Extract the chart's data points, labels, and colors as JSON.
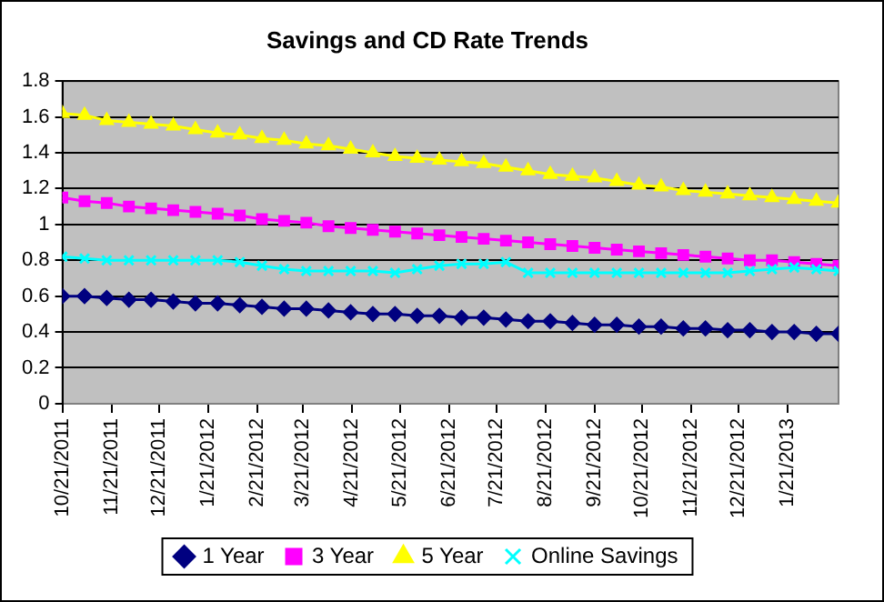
{
  "chart_data": {
    "type": "line",
    "title": "Savings and CD Rate Trends",
    "x": [
      "2011-10-21",
      "2011-11-04",
      "2011-11-18",
      "2011-12-02",
      "2011-12-16",
      "2011-12-30",
      "2012-01-13",
      "2012-01-27",
      "2012-02-10",
      "2012-02-24",
      "2012-03-09",
      "2012-03-23",
      "2012-04-06",
      "2012-04-20",
      "2012-05-04",
      "2012-05-18",
      "2012-06-01",
      "2012-06-15",
      "2012-06-29",
      "2012-07-13",
      "2012-07-27",
      "2012-08-10",
      "2012-08-24",
      "2012-09-07",
      "2012-09-21",
      "2012-10-05",
      "2012-10-19",
      "2012-11-02",
      "2012-11-16",
      "2012-11-30",
      "2012-12-14",
      "2012-12-28",
      "2013-01-11",
      "2013-01-25",
      "2013-02-08",
      "2013-02-22"
    ],
    "series": [
      {
        "name": "1 Year",
        "color": "#000080",
        "marker": "diamond",
        "values": [
          0.6,
          0.6,
          0.59,
          0.58,
          0.58,
          0.57,
          0.56,
          0.56,
          0.55,
          0.54,
          0.53,
          0.53,
          0.52,
          0.51,
          0.5,
          0.5,
          0.49,
          0.49,
          0.48,
          0.48,
          0.47,
          0.46,
          0.46,
          0.45,
          0.44,
          0.44,
          0.43,
          0.43,
          0.42,
          0.42,
          0.41,
          0.41,
          0.4,
          0.4,
          0.39,
          0.39
        ]
      },
      {
        "name": "3 Year",
        "color": "#ff00ff",
        "marker": "square",
        "values": [
          1.15,
          1.13,
          1.12,
          1.1,
          1.09,
          1.08,
          1.07,
          1.06,
          1.05,
          1.03,
          1.02,
          1.01,
          0.99,
          0.98,
          0.97,
          0.96,
          0.95,
          0.94,
          0.93,
          0.92,
          0.91,
          0.9,
          0.89,
          0.88,
          0.87,
          0.86,
          0.85,
          0.84,
          0.83,
          0.82,
          0.81,
          0.8,
          0.8,
          0.79,
          0.78,
          0.77
        ]
      },
      {
        "name": "5 Year",
        "color": "#ffff00",
        "marker": "triangle",
        "values": [
          1.62,
          1.61,
          1.58,
          1.57,
          1.56,
          1.55,
          1.53,
          1.51,
          1.5,
          1.48,
          1.47,
          1.45,
          1.44,
          1.42,
          1.4,
          1.38,
          1.37,
          1.36,
          1.35,
          1.34,
          1.32,
          1.3,
          1.28,
          1.27,
          1.26,
          1.24,
          1.22,
          1.21,
          1.19,
          1.18,
          1.17,
          1.16,
          1.15,
          1.14,
          1.13,
          1.12
        ]
      },
      {
        "name": "Online Savings",
        "color": "#00ffff",
        "marker": "cross",
        "values": [
          0.82,
          0.81,
          0.8,
          0.8,
          0.8,
          0.8,
          0.8,
          0.8,
          0.79,
          0.77,
          0.75,
          0.74,
          0.74,
          0.74,
          0.74,
          0.73,
          0.75,
          0.77,
          0.78,
          0.78,
          0.79,
          0.73,
          0.73,
          0.73,
          0.73,
          0.73,
          0.73,
          0.73,
          0.73,
          0.73,
          0.73,
          0.74,
          0.75,
          0.76,
          0.75,
          0.74
        ]
      }
    ],
    "xlim": [
      "2011-10-21",
      "2013-02-22"
    ],
    "xticks": [
      {
        "value": "2011-10-21",
        "label": "10/21/2011"
      },
      {
        "value": "2011-11-21",
        "label": "11/21/2011"
      },
      {
        "value": "2011-12-21",
        "label": "12/21/2011"
      },
      {
        "value": "2012-01-21",
        "label": "1/21/2012"
      },
      {
        "value": "2012-02-21",
        "label": "2/21/2012"
      },
      {
        "value": "2012-03-21",
        "label": "3/21/2012"
      },
      {
        "value": "2012-04-21",
        "label": "4/21/2012"
      },
      {
        "value": "2012-05-21",
        "label": "5/21/2012"
      },
      {
        "value": "2012-06-21",
        "label": "6/21/2012"
      },
      {
        "value": "2012-07-21",
        "label": "7/21/2012"
      },
      {
        "value": "2012-08-21",
        "label": "8/21/2012"
      },
      {
        "value": "2012-09-21",
        "label": "9/21/2012"
      },
      {
        "value": "2012-10-21",
        "label": "10/21/2012"
      },
      {
        "value": "2012-11-21",
        "label": "11/21/2012"
      },
      {
        "value": "2012-12-21",
        "label": "12/21/2012"
      },
      {
        "value": "2013-01-21",
        "label": "1/21/2013"
      }
    ],
    "ylim": [
      0,
      1.8
    ],
    "yticks": [
      0,
      0.2,
      0.4,
      0.6,
      0.8,
      1,
      1.2,
      1.4,
      1.6,
      1.8
    ],
    "grid": "y",
    "legend": "bottom"
  }
}
